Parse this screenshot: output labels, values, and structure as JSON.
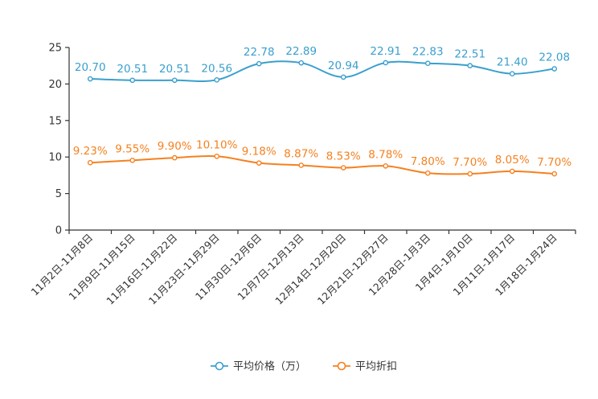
{
  "chart_data": {
    "type": "line",
    "title": "",
    "xlabel": "",
    "ylabel": "",
    "ylim": [
      0,
      25
    ],
    "yticks": [
      0,
      5,
      10,
      15,
      20,
      25
    ],
    "grid": false,
    "legend_position": "bottom-center",
    "categories": [
      "11月2日-11月8日",
      "11月9日-11月15日",
      "11月16日-11月22日",
      "11月23日-11月29日",
      "11月30日-12月6日",
      "12月7日-12月13日",
      "12月14日-12月20日",
      "12月21日-12月27日",
      "12月28日-1月3日",
      "1月4日-1月10日",
      "1月11日-1月17日",
      "1月18日-1月24日"
    ],
    "series": [
      {
        "name": "平均价格（万）",
        "color": "#3a9fce",
        "values": [
          20.7,
          20.51,
          20.51,
          20.56,
          22.78,
          22.89,
          20.94,
          22.91,
          22.83,
          22.51,
          21.4,
          22.08
        ],
        "labels": [
          "20.70",
          "20.51",
          "20.51",
          "20.56",
          "22.78",
          "22.89",
          "20.94",
          "22.91",
          "22.83",
          "22.51",
          "21.40",
          "22.08"
        ]
      },
      {
        "name": "平均折扣",
        "color": "#f5811f",
        "values": [
          9.23,
          9.55,
          9.9,
          10.1,
          9.18,
          8.87,
          8.53,
          8.78,
          7.8,
          7.7,
          8.05,
          7.7
        ],
        "labels": [
          "9.23%",
          "9.55%",
          "9.90%",
          "10.10%",
          "9.18%",
          "8.87%",
          "8.53%",
          "8.78%",
          "7.80%",
          "7.70%",
          "8.05%",
          "7.70%"
        ]
      }
    ]
  }
}
